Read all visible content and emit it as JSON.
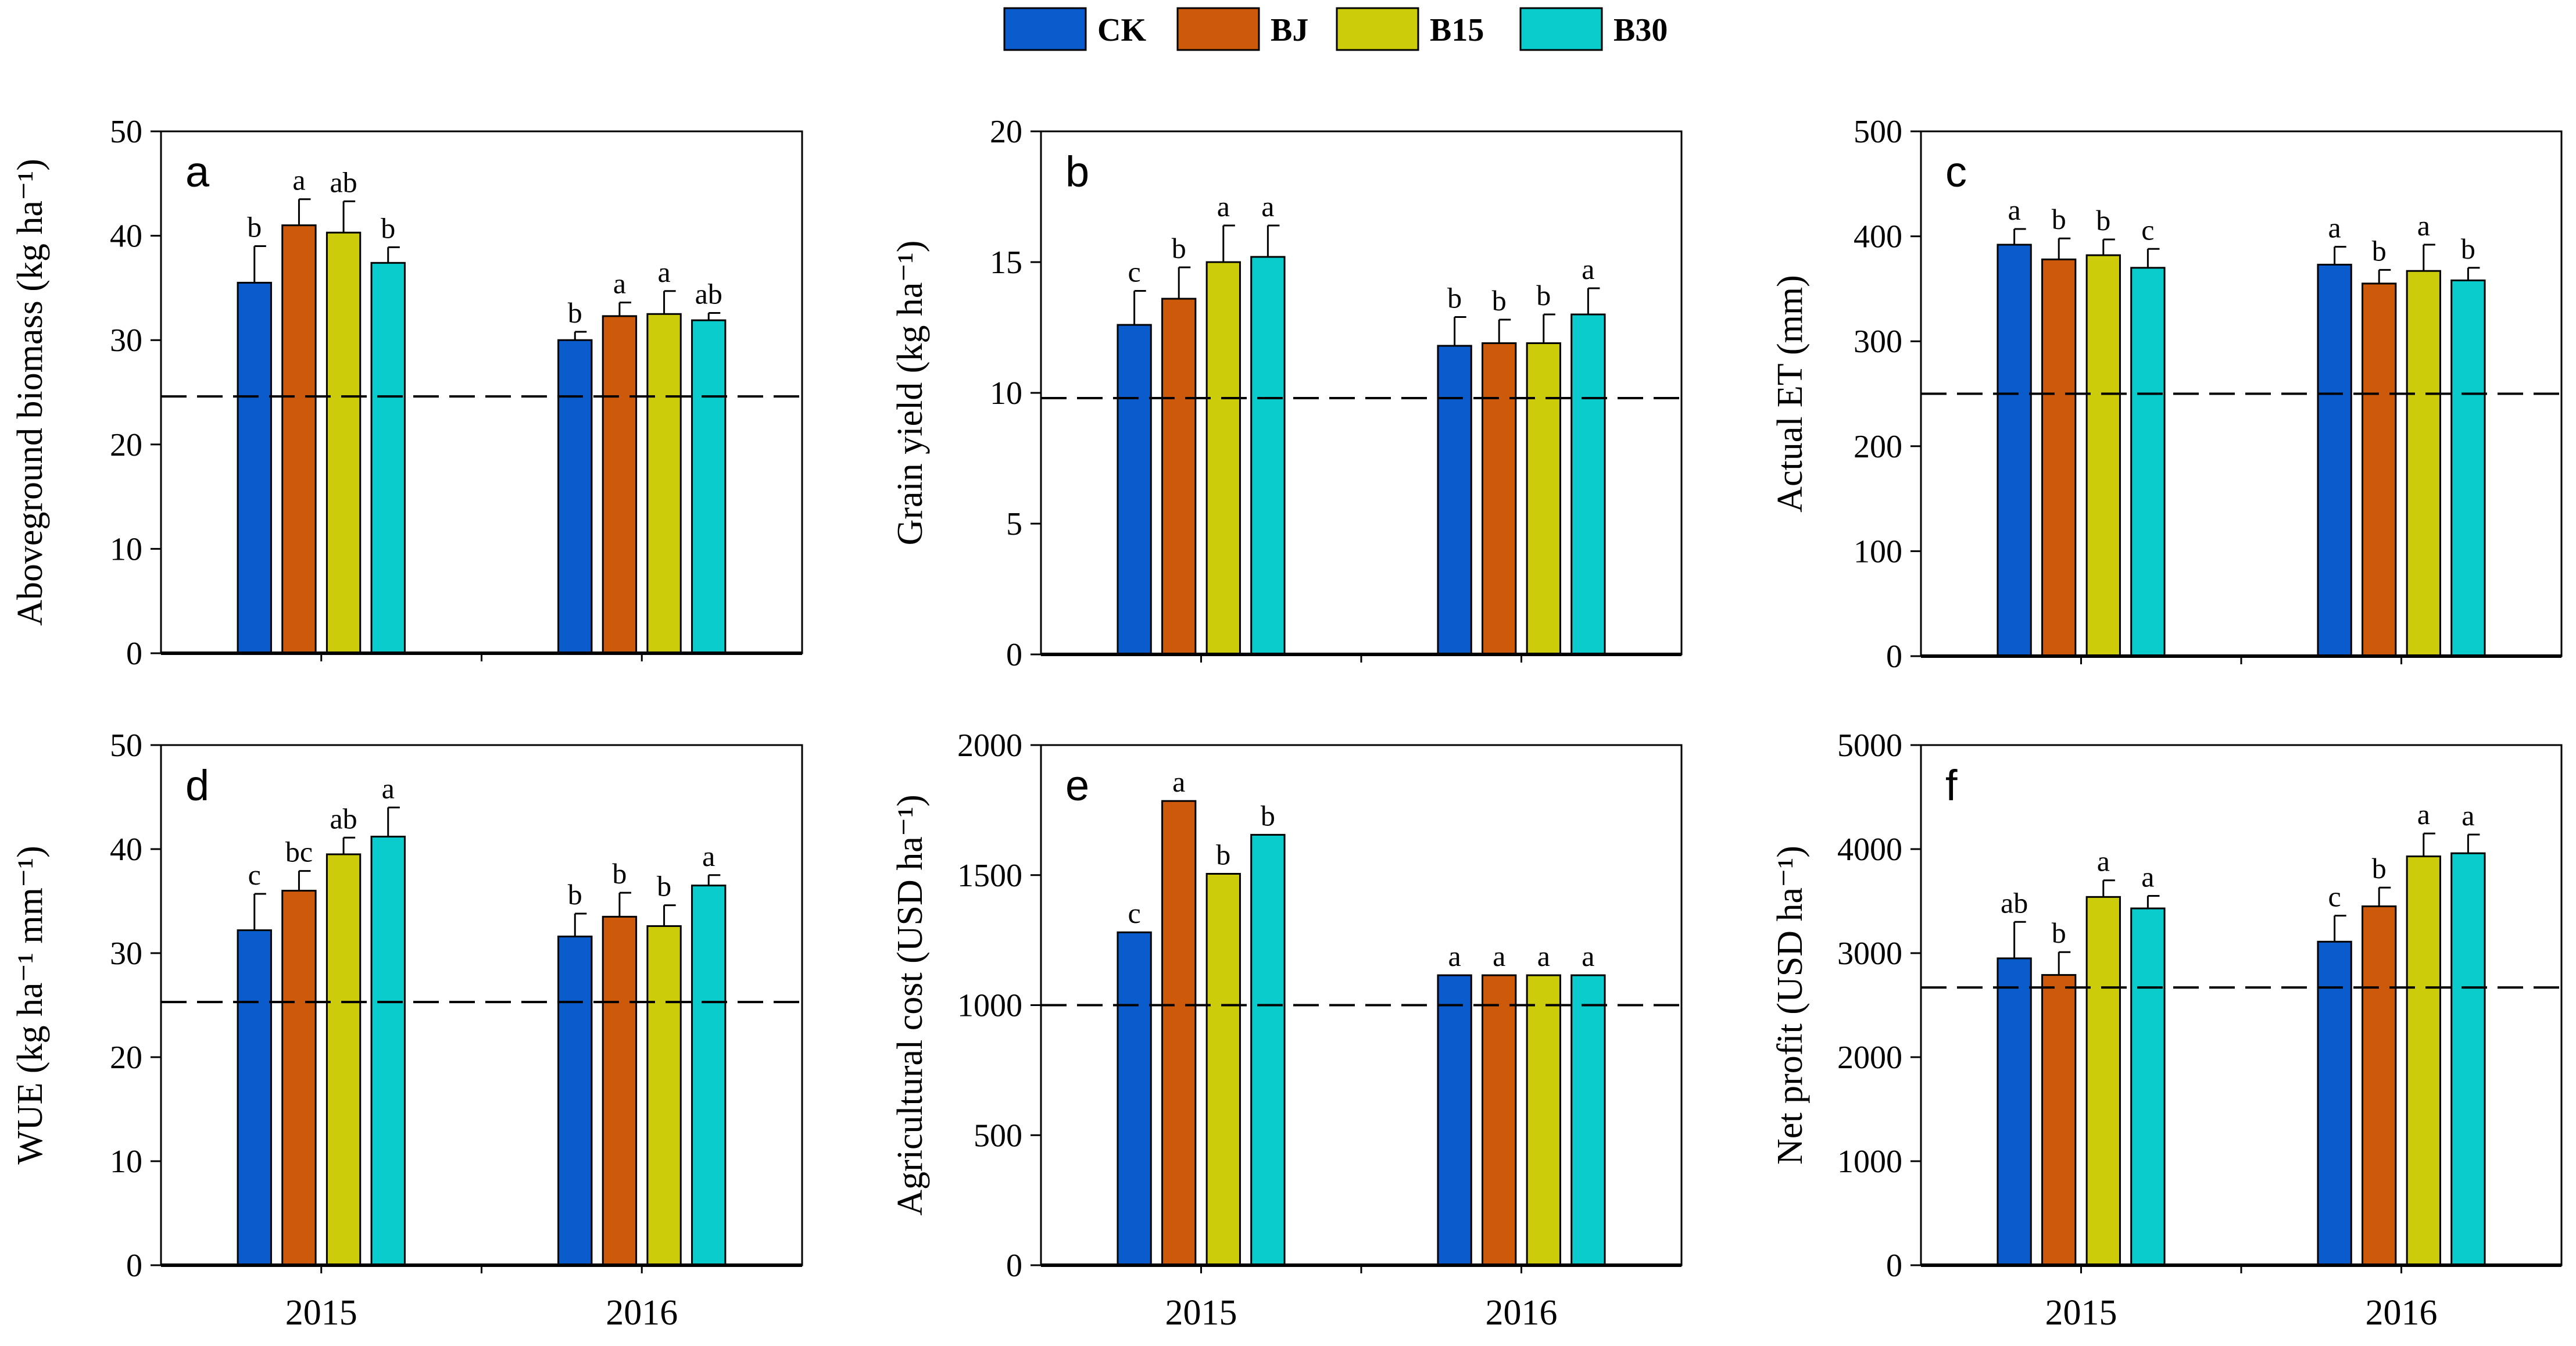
{
  "legend": [
    {
      "name": "CK",
      "color": "#0a5ccc"
    },
    {
      "name": "BJ",
      "color": "#cc5a0a"
    },
    {
      "name": "B15",
      "color": "#cccc0a"
    },
    {
      "name": "B30",
      "color": "#0acccc"
    }
  ],
  "chart_data": [
    {
      "type": "bar",
      "panel": "a",
      "ylabel": "Aboveground biomass (kg ha⁻¹)",
      "ylim": [
        0,
        50
      ],
      "yticks": [
        0,
        10,
        20,
        30,
        40,
        50
      ],
      "categories": [
        "2015",
        "2016"
      ],
      "series": [
        {
          "name": "CK",
          "values": [
            35.5,
            30.0
          ],
          "errors": [
            3.5,
            0.8
          ],
          "sig": [
            "b",
            "b"
          ]
        },
        {
          "name": "BJ",
          "values": [
            41.0,
            32.3
          ],
          "errors": [
            2.5,
            1.3
          ],
          "sig": [
            "a",
            "a"
          ]
        },
        {
          "name": "B15",
          "values": [
            40.3,
            32.5
          ],
          "errors": [
            3.0,
            2.2
          ],
          "sig": [
            "ab",
            "a"
          ]
        },
        {
          "name": "B30",
          "values": [
            37.4,
            31.9
          ],
          "errors": [
            1.5,
            0.7
          ],
          "sig": [
            "b",
            "ab"
          ]
        }
      ],
      "reference_line": 24.6
    },
    {
      "type": "bar",
      "panel": "b",
      "ylabel": "Grain yield (kg ha⁻¹)",
      "ylim": [
        0,
        20
      ],
      "yticks": [
        0,
        5,
        10,
        15,
        20
      ],
      "categories": [
        "2015",
        "2016"
      ],
      "series": [
        {
          "name": "CK",
          "values": [
            12.6,
            11.8
          ],
          "errors": [
            1.3,
            1.1
          ],
          "sig": [
            "c",
            "b"
          ]
        },
        {
          "name": "BJ",
          "values": [
            13.6,
            11.9
          ],
          "errors": [
            1.2,
            0.9
          ],
          "sig": [
            "b",
            "b"
          ]
        },
        {
          "name": "B15",
          "values": [
            15.0,
            11.9
          ],
          "errors": [
            1.4,
            1.1
          ],
          "sig": [
            "a",
            "b"
          ]
        },
        {
          "name": "B30",
          "values": [
            15.2,
            13.0
          ],
          "errors": [
            1.2,
            1.0
          ],
          "sig": [
            "a",
            "a"
          ]
        }
      ],
      "reference_line": 9.8
    },
    {
      "type": "bar",
      "panel": "c",
      "ylabel": "Actual ET (mm)",
      "ylim": [
        0,
        500
      ],
      "yticks": [
        0,
        100,
        200,
        300,
        400,
        500
      ],
      "categories": [
        "2015",
        "2016"
      ],
      "series": [
        {
          "name": "CK",
          "values": [
            392,
            373
          ],
          "errors": [
            15,
            17
          ],
          "sig": [
            "a",
            "a"
          ]
        },
        {
          "name": "BJ",
          "values": [
            378,
            355
          ],
          "errors": [
            20,
            13
          ],
          "sig": [
            "b",
            "b"
          ]
        },
        {
          "name": "B15",
          "values": [
            382,
            367
          ],
          "errors": [
            15,
            25
          ],
          "sig": [
            "b",
            "a"
          ]
        },
        {
          "name": "B30",
          "values": [
            370,
            358
          ],
          "errors": [
            18,
            12
          ],
          "sig": [
            "c",
            "b"
          ]
        }
      ],
      "reference_line": 250
    },
    {
      "type": "bar",
      "panel": "d",
      "ylabel": "WUE (kg ha⁻¹ mm⁻¹)",
      "ylim": [
        0,
        50
      ],
      "yticks": [
        0,
        10,
        20,
        30,
        40,
        50
      ],
      "categories": [
        "2015",
        "2016"
      ],
      "series": [
        {
          "name": "CK",
          "values": [
            32.2,
            31.6
          ],
          "errors": [
            3.5,
            2.2
          ],
          "sig": [
            "c",
            "b"
          ]
        },
        {
          "name": "BJ",
          "values": [
            36.0,
            33.5
          ],
          "errors": [
            1.9,
            2.3
          ],
          "sig": [
            "bc",
            "b"
          ]
        },
        {
          "name": "B15",
          "values": [
            39.5,
            32.6
          ],
          "errors": [
            1.6,
            2.0
          ],
          "sig": [
            "ab",
            "b"
          ]
        },
        {
          "name": "B30",
          "values": [
            41.2,
            36.5
          ],
          "errors": [
            2.8,
            1.0
          ],
          "sig": [
            "a",
            "a"
          ]
        }
      ],
      "reference_line": 25.3
    },
    {
      "type": "bar",
      "panel": "e",
      "ylabel": "Agricultural cost (USD ha⁻¹)",
      "ylim": [
        0,
        2000
      ],
      "yticks": [
        0,
        500,
        1000,
        1500,
        2000
      ],
      "categories": [
        "2015",
        "2016"
      ],
      "series": [
        {
          "name": "CK",
          "values": [
            1280,
            1115
          ],
          "errors": [
            0,
            0
          ],
          "sig": [
            "c",
            "a"
          ]
        },
        {
          "name": "BJ",
          "values": [
            1785,
            1115
          ],
          "errors": [
            0,
            0
          ],
          "sig": [
            "a",
            "a"
          ]
        },
        {
          "name": "B15",
          "values": [
            1505,
            1115
          ],
          "errors": [
            0,
            0
          ],
          "sig": [
            "b",
            "a"
          ]
        },
        {
          "name": "B30",
          "values": [
            1655,
            1115
          ],
          "errors": [
            0,
            0
          ],
          "sig": [
            "b",
            "a"
          ]
        }
      ],
      "reference_line": 1000
    },
    {
      "type": "bar",
      "panel": "f",
      "ylabel": "Net profit (USD ha⁻¹)",
      "ylim": [
        0,
        5000
      ],
      "yticks": [
        0,
        1000,
        2000,
        3000,
        4000,
        5000
      ],
      "categories": [
        "2015",
        "2016"
      ],
      "series": [
        {
          "name": "CK",
          "values": [
            2950,
            3110
          ],
          "errors": [
            350,
            250
          ],
          "sig": [
            "ab",
            "c"
          ]
        },
        {
          "name": "BJ",
          "values": [
            2790,
            3450
          ],
          "errors": [
            220,
            180
          ],
          "sig": [
            "b",
            "b"
          ]
        },
        {
          "name": "B15",
          "values": [
            3540,
            3930
          ],
          "errors": [
            160,
            220
          ],
          "sig": [
            "a",
            "a"
          ]
        },
        {
          "name": "B30",
          "values": [
            3430,
            3960
          ],
          "errors": [
            120,
            180
          ],
          "sig": [
            "a",
            "a"
          ]
        }
      ],
      "reference_line": 2670
    }
  ]
}
